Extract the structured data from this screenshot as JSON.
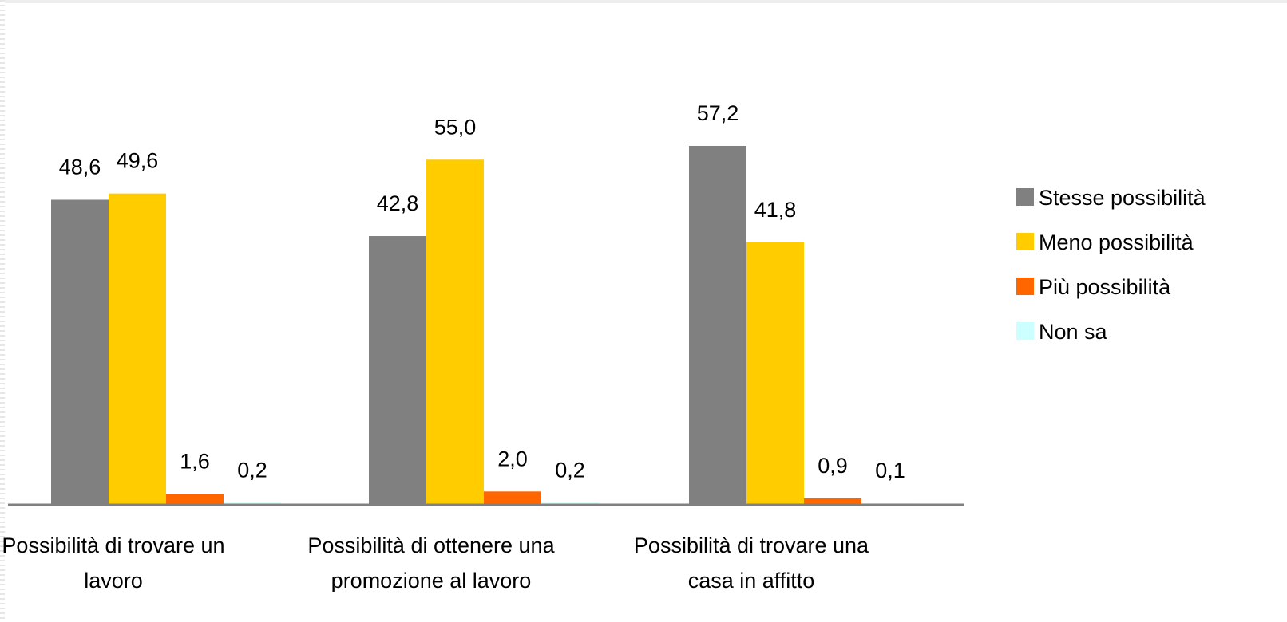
{
  "chart_data": {
    "type": "bar",
    "title": "",
    "xlabel": "",
    "ylabel": "",
    "ylim": [
      0,
      62
    ],
    "grid": false,
    "legend_position": "right",
    "categories": [
      [
        "Possibilità di trovare un",
        "lavoro"
      ],
      [
        "Possibilità di ottenere una",
        "promozione al lavoro"
      ],
      [
        "Possibilità di trovare una",
        "casa in affitto"
      ]
    ],
    "series": [
      {
        "name": "Stesse possibilità",
        "color": "#808080",
        "values": [
          48.6,
          42.8,
          57.2
        ],
        "labels": [
          "48,6",
          "42,8",
          "57,2"
        ]
      },
      {
        "name": "Meno possibilità",
        "color": "#FFCC00",
        "values": [
          49.6,
          55.0,
          41.8
        ],
        "labels": [
          "49,6",
          "55,0",
          "41,8"
        ]
      },
      {
        "name": "Più possibilità",
        "color": "#FF6600",
        "values": [
          1.6,
          2.0,
          0.9
        ],
        "labels": [
          "1,6",
          "2,0",
          "0,9"
        ]
      },
      {
        "name": "Non sa",
        "color": "#CCFFFF",
        "values": [
          0.2,
          0.2,
          0.1
        ],
        "labels": [
          "0,2",
          "0,2",
          "0,1"
        ]
      }
    ],
    "axis_color": "#808080"
  }
}
